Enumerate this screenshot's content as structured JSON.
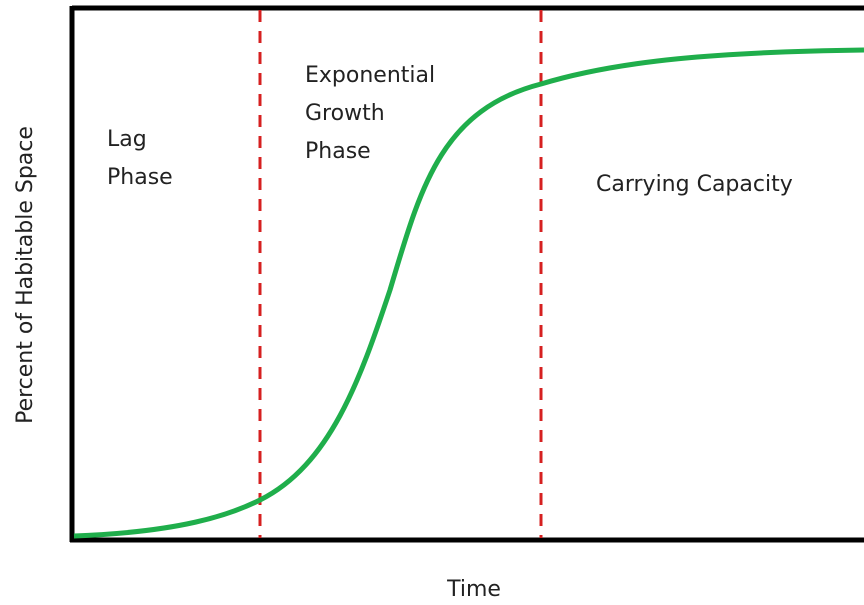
{
  "diagram": {
    "y_axis_label": "Percent of Habitable Space",
    "x_axis_label": "Time",
    "phases": [
      {
        "lines": [
          "Lag",
          "Phase"
        ]
      },
      {
        "lines": [
          "Exponential",
          "Growth",
          "Phase"
        ]
      },
      {
        "lines": [
          "Carrying Capacity"
        ]
      }
    ]
  }
}
